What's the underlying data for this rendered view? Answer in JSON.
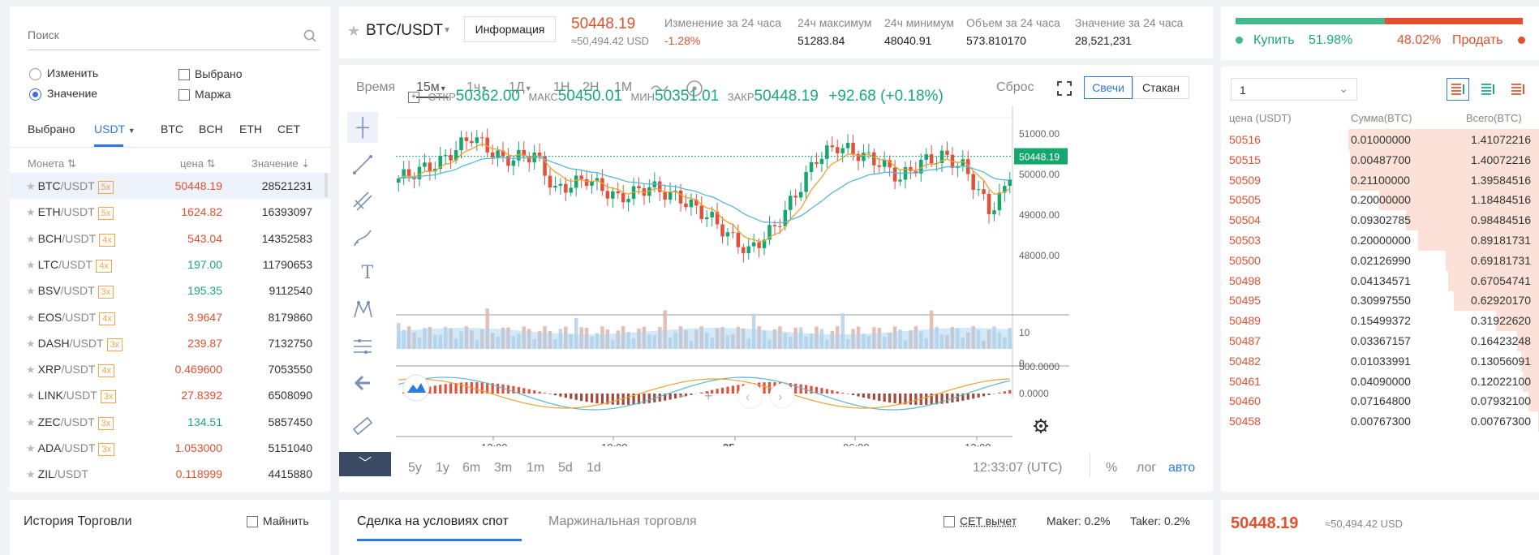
{
  "search": {
    "placeholder": "Поиск"
  },
  "filters": {
    "change": "Изменить",
    "value": "Значение",
    "selected": "Выбрано",
    "margin": "Маржа"
  },
  "markets": {
    "tabs": [
      "Выбрано",
      "USDT",
      "BTC",
      "BCH",
      "ETH",
      "CET"
    ]
  },
  "columns": {
    "coin": "Монета",
    "price": "цена",
    "value": "Значение"
  },
  "coins": [
    {
      "base": "BTC",
      "quote": "/USDT",
      "lev": "5x",
      "price": "50448.19",
      "vol": "28521231",
      "color": "red"
    },
    {
      "base": "ETH",
      "quote": "/USDT",
      "lev": "5x",
      "price": "1624.82",
      "vol": "16393097",
      "color": "red"
    },
    {
      "base": "BCH",
      "quote": "/USDT",
      "lev": "4x",
      "price": "543.04",
      "vol": "14352583",
      "color": "red"
    },
    {
      "base": "LTC",
      "quote": "/USDT",
      "lev": "4x",
      "price": "197.00",
      "vol": "11790653",
      "color": "green"
    },
    {
      "base": "BSV",
      "quote": "/USDT",
      "lev": "3x",
      "price": "195.35",
      "vol": "9112540",
      "color": "green"
    },
    {
      "base": "EOS",
      "quote": "/USDT",
      "lev": "4x",
      "price": "3.9647",
      "vol": "8179860",
      "color": "red"
    },
    {
      "base": "DASH",
      "quote": "/USDT",
      "lev": "3x",
      "price": "239.87",
      "vol": "7132750",
      "color": "red"
    },
    {
      "base": "XRP",
      "quote": "/USDT",
      "lev": "4x",
      "price": "0.469600",
      "vol": "7053550",
      "color": "red"
    },
    {
      "base": "LINK",
      "quote": "/USDT",
      "lev": "3x",
      "price": "27.8392",
      "vol": "6508090",
      "color": "red"
    },
    {
      "base": "ZEC",
      "quote": "/USDT",
      "lev": "3x",
      "price": "134.51",
      "vol": "5857450",
      "color": "green"
    },
    {
      "base": "ADA",
      "quote": "/USDT",
      "lev": "3x",
      "price": "1.053000",
      "vol": "5151040",
      "color": "red"
    },
    {
      "base": "ZIL",
      "quote": "/USDT",
      "lev": "",
      "price": "0.118999",
      "vol": "4415880",
      "color": "red"
    }
  ],
  "history": {
    "title": "История Торговли",
    "mine": "Майнить"
  },
  "ticker": {
    "pair": "BTC/USDT",
    "info_btn": "Информация",
    "last": "50448.19",
    "last_usd": "≈50,494.42 USD",
    "change_label": "Изменение за 24 часа",
    "change": "-1.28%",
    "high_label": "24ч максимум",
    "high": "51283.84",
    "low_label": "24ч минимум",
    "low": "48040.91",
    "vol_label": "Объем за 24 часа",
    "vol": "573.810170",
    "val_label": "Значение за 24 часа",
    "val": "28,521,231"
  },
  "chart": {
    "time": "Время",
    "intervals": [
      "15м",
      "1ч",
      "1Д",
      "1Н",
      "2Н",
      "1М"
    ],
    "reset": "Сброс",
    "candles": "Свечи",
    "book": "Стакан",
    "ohlc": {
      "o_label": "ОТКР",
      "o": "50362.00",
      "h_label": "МАКС",
      "h": "50450.01",
      "l_label": "МИН",
      "l": "50351.01",
      "c_label": "ЗАКР",
      "c": "50448.19",
      "chg": "+92.68 (+0.18%)"
    },
    "price_ticks": [
      "51000.00",
      "50000.00",
      "49000.00",
      "48000.00"
    ],
    "last_price_tag": "50448.19",
    "vol_ticks": [
      "10",
      "0"
    ],
    "macd_ticks": [
      "500.0000",
      "0.0000"
    ],
    "x_ticks": [
      "12:00",
      "18:00",
      "25",
      "06:00",
      "12:00"
    ],
    "ranges": [
      "5y",
      "1y",
      "6m",
      "3m",
      "1m",
      "5d",
      "1d"
    ],
    "clock": "12:33:07 (UTC)",
    "pct": "%",
    "log": "лог",
    "auto": "авто"
  },
  "trade_tabs": {
    "spot": "Сделка на условиях спот",
    "margin": "Маржинальная торговля",
    "cet": "CET вычет",
    "maker": "Maker: 0.2%",
    "taker": "Taker: 0.2%"
  },
  "sentiment": {
    "buy_label": "Купить",
    "buy_pct": "51.98%",
    "sell_pct": "48.02%",
    "sell_label": "Продать",
    "buy_ratio": 0.5198
  },
  "orderbook": {
    "depth": "1",
    "col_price": "цена (USDT)",
    "col_amount": "Сумма(BTC)",
    "col_total": "Всего(BTC)",
    "asks": [
      {
        "p": "50516",
        "a": "0.01000000",
        "t": "1.41072216"
      },
      {
        "p": "50515",
        "a": "0.00487700",
        "t": "1.40072216"
      },
      {
        "p": "50509",
        "a": "0.21100000",
        "t": "1.39584516"
      },
      {
        "p": "50505",
        "a": "0.20000000",
        "t": "1.18484516"
      },
      {
        "p": "50504",
        "a": "0.09302785",
        "t": "0.98484516"
      },
      {
        "p": "50503",
        "a": "0.20000000",
        "t": "0.89181731"
      },
      {
        "p": "50500",
        "a": "0.02126990",
        "t": "0.69181731"
      },
      {
        "p": "50498",
        "a": "0.04134571",
        "t": "0.67054741"
      },
      {
        "p": "50495",
        "a": "0.30997550",
        "t": "0.62920170"
      },
      {
        "p": "50489",
        "a": "0.15499372",
        "t": "0.31922620"
      },
      {
        "p": "50487",
        "a": "0.03367157",
        "t": "0.16423248"
      },
      {
        "p": "50482",
        "a": "0.01033991",
        "t": "0.13056091"
      },
      {
        "p": "50461",
        "a": "0.04090000",
        "t": "0.12022100"
      },
      {
        "p": "50460",
        "a": "0.07164800",
        "t": "0.07932100"
      },
      {
        "p": "50458",
        "a": "0.00767300",
        "t": "0.00767300"
      }
    ],
    "last": "50448.19",
    "last_usd": "≈50,494.42 USD"
  },
  "colors": {
    "red": "#e2502e",
    "green": "#1aa97a",
    "accent": "#2e7be0"
  }
}
